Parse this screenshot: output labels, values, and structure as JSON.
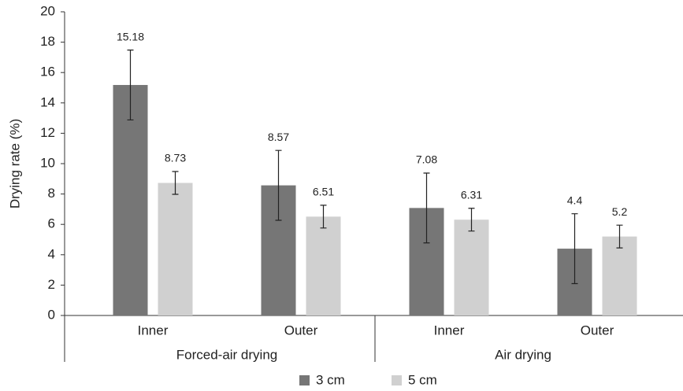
{
  "chart_data": {
    "type": "bar",
    "y_label": "Drying rate (%)",
    "categories": [
      "Inner",
      "Outer",
      "Inner",
      "Outer"
    ],
    "groups": [
      {
        "name": "Forced-air drying",
        "size": 2
      },
      {
        "name": "Air drying",
        "size": 2
      }
    ],
    "series": [
      {
        "name": "3 cm",
        "color": "#767676",
        "values": [
          15.18,
          8.57,
          7.08,
          4.4
        ],
        "errors": [
          2.3,
          2.3,
          2.3,
          2.3
        ]
      },
      {
        "name": "5 cm",
        "color": "#d0d0d0",
        "values": [
          8.73,
          6.51,
          6.31,
          5.2
        ],
        "errors": [
          0.75,
          0.75,
          0.75,
          0.75
        ]
      }
    ],
    "ylim": [
      0,
      20
    ],
    "yticks": [
      0,
      2,
      4,
      6,
      8,
      10,
      12,
      14,
      16,
      18,
      20
    ],
    "legend": "bottom"
  }
}
